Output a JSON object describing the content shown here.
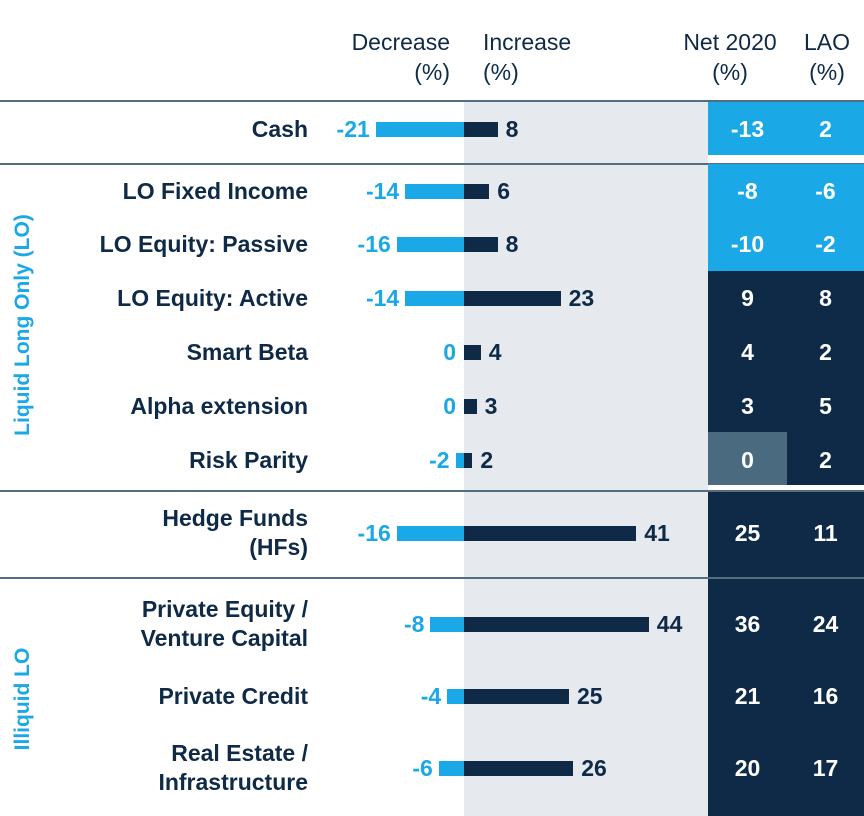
{
  "headers": {
    "decrease": [
      "Decrease",
      "(%)"
    ],
    "increase": [
      "Increase",
      "(%)"
    ],
    "net": [
      "Net 2020",
      "(%)"
    ],
    "lao": [
      "LAO",
      "(%)"
    ]
  },
  "groups": {
    "liquid": "Liquid Long Only (LO)",
    "illiquid": "Illiquid LO"
  },
  "colors": {
    "decrease": "#1ba8e6",
    "increase": "#0e2a47",
    "cell_negative": "#1ba8e6",
    "cell_positive": "#0e2a47",
    "cell_zero": "#4a6a80",
    "panel": "#e6e9ee"
  },
  "chart_data": {
    "type": "bar",
    "title": "",
    "xlabel": "",
    "ylabel": "",
    "categories": [
      [
        "Cash"
      ],
      [
        "LO Fixed Income"
      ],
      [
        "LO Equity: Passive"
      ],
      [
        "LO Equity: Active"
      ],
      [
        "Smart Beta"
      ],
      [
        "Alpha extension"
      ],
      [
        "Risk Parity"
      ],
      [
        "Hedge Funds",
        "(HFs)"
      ],
      [
        "Private Equity /",
        "Venture Capital"
      ],
      [
        "Private Credit"
      ],
      [
        "Real Estate /",
        "Infrastructure"
      ]
    ],
    "series": [
      {
        "name": "Decrease (%)",
        "values": [
          -21,
          -14,
          -16,
          -14,
          0,
          0,
          -2,
          -16,
          -8,
          -4,
          -6
        ]
      },
      {
        "name": "Increase (%)",
        "values": [
          8,
          6,
          8,
          23,
          4,
          3,
          2,
          41,
          44,
          25,
          26
        ]
      },
      {
        "name": "Net 2020 (%)",
        "values": [
          -13,
          -8,
          -10,
          9,
          4,
          3,
          0,
          25,
          36,
          21,
          20
        ]
      },
      {
        "name": "LAO (%)",
        "values": [
          2,
          -6,
          -2,
          8,
          2,
          5,
          2,
          11,
          24,
          16,
          17
        ]
      }
    ]
  }
}
